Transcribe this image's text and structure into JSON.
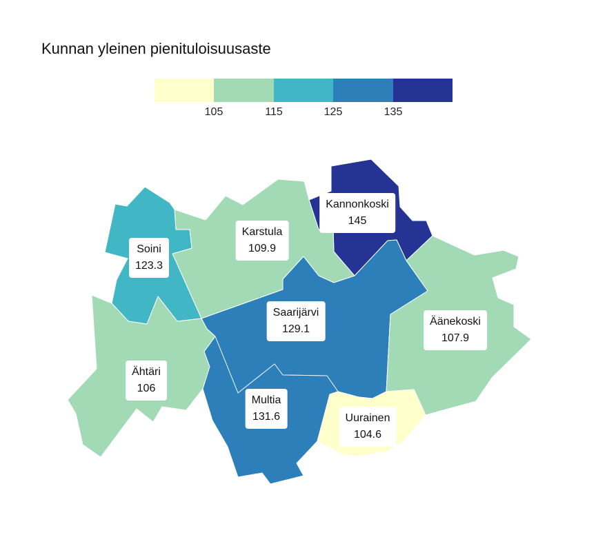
{
  "title": "Kunnan yleinen pienituloisuusaste",
  "legend": {
    "colors": [
      "#ffffcc",
      "#a1dab4",
      "#41b6c4",
      "#2c7fb8",
      "#253494"
    ],
    "ticks": [
      "105",
      "115",
      "125",
      "135"
    ]
  },
  "regions": [
    {
      "name": "Kannonkoski",
      "value": "145",
      "color": "#253494"
    },
    {
      "name": "Karstula",
      "value": "109.9",
      "color": "#a1dab4"
    },
    {
      "name": "Soini",
      "value": "123.3",
      "color": "#41b6c4"
    },
    {
      "name": "Saarijärvi",
      "value": "129.1",
      "color": "#2c7fb8"
    },
    {
      "name": "Äänekoski",
      "value": "107.9",
      "color": "#a1dab4"
    },
    {
      "name": "Ähtäri",
      "value": "106",
      "color": "#a1dab4"
    },
    {
      "name": "Multia",
      "value": "131.6",
      "color": "#2c7fb8"
    },
    {
      "name": "Uurainen",
      "value": "104.6",
      "color": "#ffffcc"
    }
  ]
}
